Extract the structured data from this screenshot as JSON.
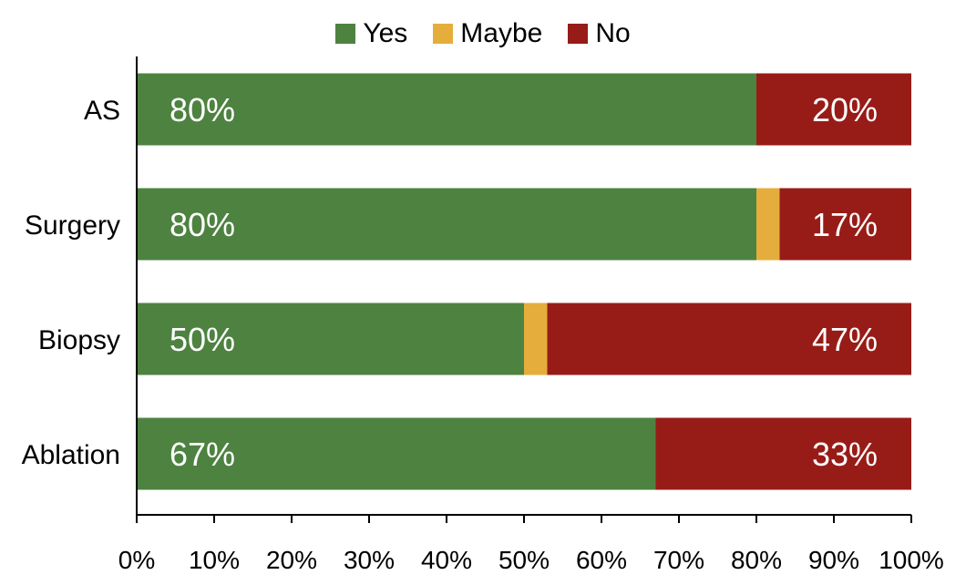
{
  "chart_data": {
    "type": "bar",
    "orientation": "horizontal",
    "stacked": true,
    "categories": [
      "AS",
      "Surgery",
      "Biopsy",
      "Ablation"
    ],
    "series": [
      {
        "name": "Yes",
        "values": [
          80,
          80,
          50,
          67
        ],
        "color": "#4d8240",
        "labels": [
          "80%",
          "80%",
          "50%",
          "67%"
        ]
      },
      {
        "name": "Maybe",
        "values": [
          0,
          3,
          3,
          0
        ],
        "color": "#e5ad3b",
        "labels": [
          "",
          "",
          "",
          ""
        ]
      },
      {
        "name": "No",
        "values": [
          20,
          17,
          47,
          33
        ],
        "color": "#971c17",
        "labels": [
          "20%",
          "17%",
          "47%",
          "33%"
        ]
      }
    ],
    "xlim": [
      0,
      100
    ],
    "x_ticks": [
      "0%",
      "10%",
      "20%",
      "30%",
      "40%",
      "50%",
      "60%",
      "70%",
      "80%",
      "90%",
      "100%"
    ],
    "grid": false,
    "legend_position": "top"
  }
}
